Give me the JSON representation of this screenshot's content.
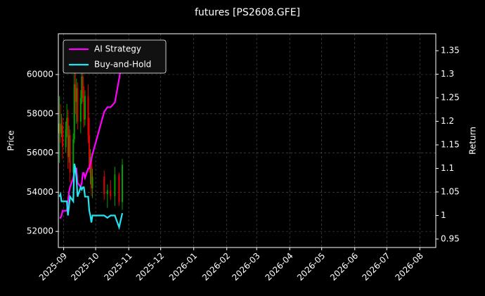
{
  "chart_data": {
    "type": "candlestick",
    "title": "futures [PS2608.GFE]",
    "ylabel": "Price",
    "y2label": "Return",
    "xlim": [
      20327,
      20681
    ],
    "xticks": [
      {
        "value": 20332,
        "label": "2025-09"
      },
      {
        "value": 20362,
        "label": "2025-10"
      },
      {
        "value": 20393,
        "label": "2025-11"
      },
      {
        "value": 20423,
        "label": "2025-12"
      },
      {
        "value": 20454,
        "label": "2026-01"
      },
      {
        "value": 20485,
        "label": "2026-02"
      },
      {
        "value": 20513,
        "label": "2026-03"
      },
      {
        "value": 20544,
        "label": "2026-04"
      },
      {
        "value": 20574,
        "label": "2026-05"
      },
      {
        "value": 20605,
        "label": "2026-06"
      },
      {
        "value": 20635,
        "label": "2026-07"
      },
      {
        "value": 20666,
        "label": "2026-08"
      }
    ],
    "ylim": [
      51180,
      62080
    ],
    "yticks": [
      52000,
      54000,
      56000,
      58000,
      60000
    ],
    "y2lim": [
      0.932,
      1.386
    ],
    "y2ticks": [
      0.95,
      1.0,
      1.05,
      1.1,
      1.15,
      1.2,
      1.25,
      1.3,
      1.35
    ],
    "grid": true,
    "legend": "upper left",
    "up_color": "#00a000",
    "down_color": "#e00000",
    "x": [
      20328,
      20329,
      20330,
      20331,
      20334,
      20335,
      20336,
      20337,
      20338,
      20341,
      20342,
      20343,
      20344,
      20345,
      20348,
      20349,
      20350,
      20351,
      20352,
      20355,
      20356,
      20357,
      20358,
      20359,
      20370,
      20373,
      20376,
      20380,
      20384,
      20387
    ],
    "open": [
      57000,
      57500,
      57000,
      57400,
      56300,
      57200,
      57800,
      55800,
      56900,
      55000,
      56700,
      59500,
      58600,
      59300,
      57600,
      58800,
      59900,
      58900,
      57700,
      58900,
      56900,
      55300,
      55800,
      54200,
      54800,
      53900,
      54100,
      53800,
      54900,
      53500
    ],
    "high": [
      58900,
      58500,
      58000,
      57800,
      57600,
      58500,
      58200,
      57400,
      57200,
      57000,
      60200,
      60800,
      59800,
      59600,
      59200,
      60200,
      60500,
      59400,
      59200,
      59500,
      57800,
      56200,
      56000,
      55200,
      55100,
      54400,
      54600,
      55300,
      55000,
      55700
    ],
    "low": [
      55500,
      56500,
      56800,
      55700,
      56000,
      56800,
      55200,
      55500,
      54500,
      54800,
      56500,
      58000,
      57500,
      57200,
      57000,
      58500,
      58600,
      57300,
      57400,
      56500,
      55000,
      54400,
      53800,
      53700,
      53600,
      53200,
      53600,
      53300,
      53300,
      53100
    ],
    "close": [
      57500,
      57000,
      57400,
      56300,
      57200,
      57800,
      55800,
      56900,
      55000,
      56700,
      59500,
      58600,
      59300,
      57600,
      58800,
      59900,
      58900,
      57700,
      58900,
      56900,
      55300,
      55800,
      54200,
      54800,
      53900,
      54100,
      53800,
      54900,
      53500,
      55400
    ],
    "series": [
      {
        "name": "AI Strategy",
        "color": "#ff00ff",
        "axis": "y2",
        "values": [
          0.995,
          0.995,
          1.0,
          1.01,
          1.01,
          1.01,
          1.03,
          1.05,
          1.06,
          1.08,
          1.09,
          1.1,
          1.1,
          1.07,
          1.06,
          1.07,
          1.09,
          1.09,
          1.08,
          1.1,
          1.1,
          1.11,
          1.12,
          1.13,
          1.22,
          1.23,
          1.23,
          1.24,
          1.29,
          1.33
        ]
      },
      {
        "name": "Buy-and-Hold",
        "color": "#22e5f0",
        "axis": "y2",
        "values": [
          1.04,
          1.045,
          1.03,
          1.03,
          1.03,
          1.03,
          1.0,
          1.02,
          1.04,
          1.03,
          1.11,
          1.1,
          1.08,
          1.04,
          1.06,
          1.055,
          1.06,
          1.06,
          1.04,
          1.04,
          1.01,
          1.0,
          0.985,
          1.0,
          1.0,
          0.995,
          1.0,
          1.0,
          0.975,
          1.005
        ]
      }
    ]
  }
}
